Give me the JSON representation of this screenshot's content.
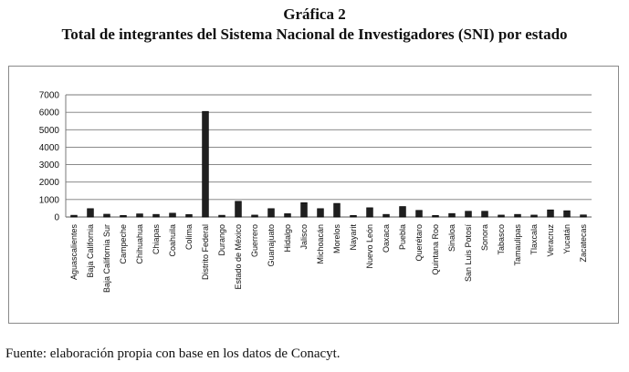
{
  "header": {
    "label": "Gráfica 2",
    "title": "Total de integrantes del Sistema Nacional de Investigadores (SNI) por estado"
  },
  "source": "Fuente: elaboración propia con base en los datos de Conacyt.",
  "colors": {
    "bar": "#1f1f1f",
    "grid": "#7a7a7a",
    "panel_border": "#8a8a8a"
  },
  "chart_data": {
    "type": "bar",
    "title": "Total de integrantes del Sistema Nacional de Investigadores (SNI) por estado",
    "xlabel": "",
    "ylabel": "",
    "ylim": [
      0,
      7000
    ],
    "yticks": [
      0,
      1000,
      2000,
      3000,
      4000,
      5000,
      6000,
      7000
    ],
    "grid": true,
    "legend": "none",
    "categories": [
      "Aguascalientes",
      "Baja California",
      "Baja California Sur",
      "Campeche",
      "Chihuahua",
      "Chiapas",
      "Coahuila",
      "Colima",
      "Distrito Federal",
      "Durango",
      "Estado de México",
      "Guerrero",
      "Guanajuato",
      "Hidalgo",
      "Jalisco",
      "Michoacán",
      "Morelos",
      "Nayarit",
      "Nuevo León",
      "Oaxaca",
      "Puebla",
      "Querétaro",
      "Quintana Roo",
      "Sinaloa",
      "San Luis Potosí",
      "Sonora",
      "Tabasco",
      "Tamaulipas",
      "Tlaxcala",
      "Veracruz",
      "Yucatán",
      "Zacatecas"
    ],
    "values": [
      100,
      480,
      160,
      90,
      180,
      150,
      220,
      140,
      6050,
      100,
      900,
      110,
      480,
      190,
      820,
      480,
      780,
      90,
      530,
      150,
      600,
      380,
      90,
      200,
      330,
      330,
      110,
      150,
      110,
      410,
      360,
      120
    ]
  }
}
